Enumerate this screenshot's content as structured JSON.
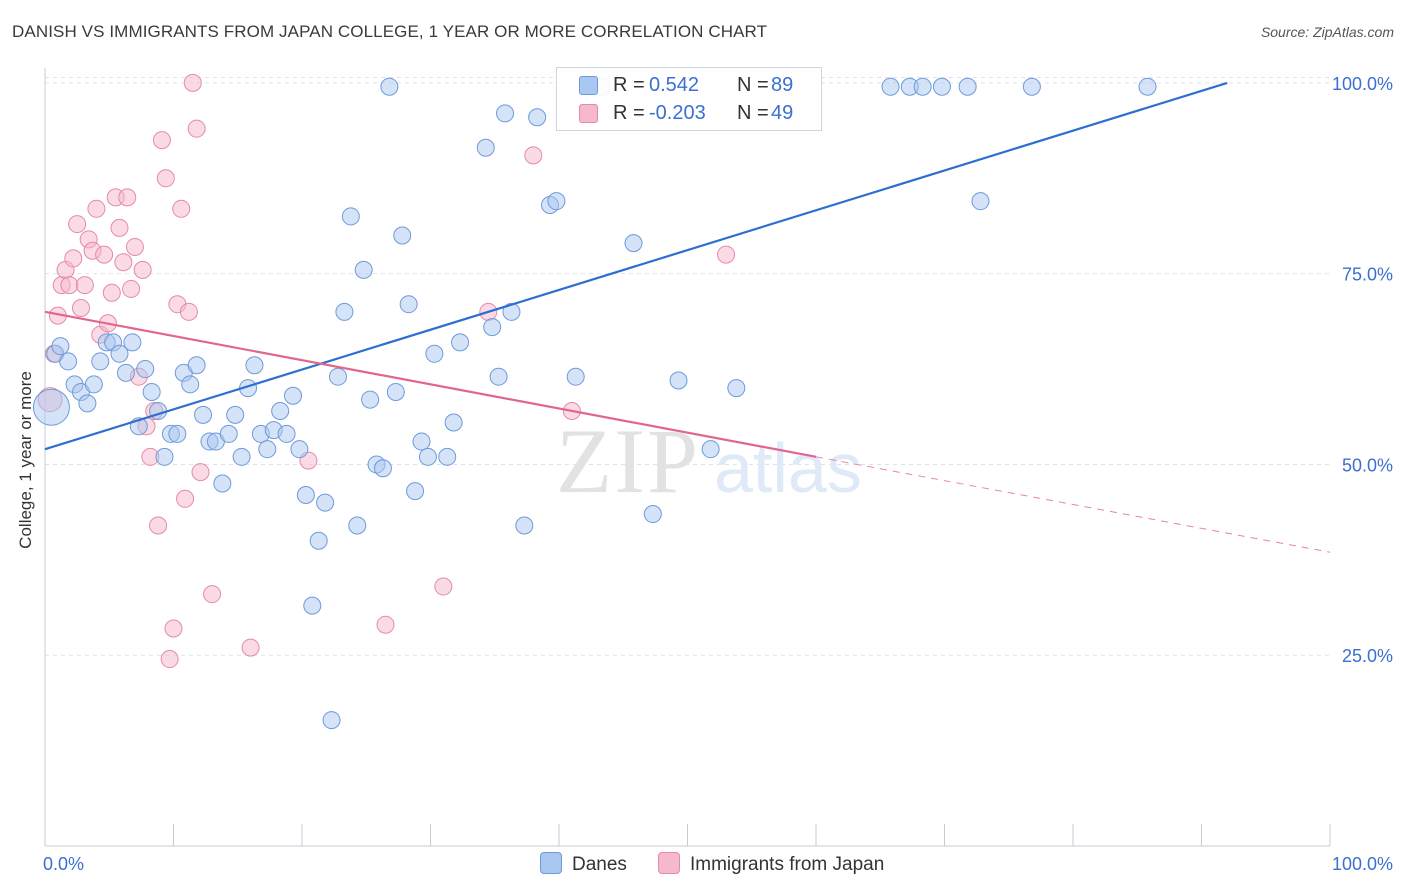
{
  "header": {
    "title": "DANISH VS IMMIGRANTS FROM JAPAN COLLEGE, 1 YEAR OR MORE CORRELATION CHART",
    "source": "Source: ZipAtlas.com"
  },
  "watermark": {
    "zip": "ZIP",
    "atlas": "atlas"
  },
  "legend": {
    "danes": {
      "r_label": "R =",
      "r_value": "0.542",
      "n_label": "N =",
      "n_value": "89"
    },
    "japan": {
      "r_label": "R =",
      "r_value": "-0.203",
      "n_label": "N =",
      "n_value": "49"
    }
  },
  "colors": {
    "danes_fill": "#a9c7f0",
    "danes_stroke": "#6f9ad8",
    "danes_line": "#2d6fd0",
    "japan_fill": "#f6b8cb",
    "japan_stroke": "#e68aa8",
    "japan_line": "#e06690",
    "axis_text": "#3b6fd0",
    "grid": "#dde2ea"
  },
  "chart_data": {
    "type": "scatter",
    "title": "DANISH VS IMMIGRANTS FROM JAPAN COLLEGE, 1 YEAR OR MORE CORRELATION CHART",
    "xlabel": "",
    "ylabel": "College, 1 year or more",
    "xlim": [
      0,
      100
    ],
    "ylim": [
      0,
      103
    ],
    "x_tick_labels": [
      "0.0%",
      "100.0%"
    ],
    "y_tick_values": [
      25,
      50,
      75,
      100
    ],
    "y_tick_labels": [
      "25.0%",
      "50.0%",
      "75.0%",
      "100.0%"
    ],
    "grid": true,
    "legend_position": "top-center",
    "series": [
      {
        "name": "Danes",
        "points": [
          [
            0.5,
            57.5
          ],
          [
            0.8,
            64.5
          ],
          [
            1.2,
            65.5
          ],
          [
            1.8,
            63.5
          ],
          [
            2.3,
            60.5
          ],
          [
            2.8,
            59.5
          ],
          [
            3.3,
            58.0
          ],
          [
            3.8,
            60.5
          ],
          [
            4.3,
            63.5
          ],
          [
            4.8,
            66.0
          ],
          [
            5.3,
            66.0
          ],
          [
            5.8,
            64.5
          ],
          [
            6.3,
            62.0
          ],
          [
            6.8,
            66.0
          ],
          [
            7.3,
            55.0
          ],
          [
            7.8,
            62.5
          ],
          [
            8.3,
            59.5
          ],
          [
            8.8,
            57.0
          ],
          [
            9.3,
            51.0
          ],
          [
            9.8,
            54.0
          ],
          [
            10.3,
            54.0
          ],
          [
            10.8,
            62.0
          ],
          [
            11.3,
            60.5
          ],
          [
            11.8,
            63.0
          ],
          [
            12.3,
            56.5
          ],
          [
            12.8,
            53.0
          ],
          [
            13.3,
            53.0
          ],
          [
            13.8,
            47.5
          ],
          [
            14.3,
            54.0
          ],
          [
            14.8,
            56.5
          ],
          [
            15.3,
            51.0
          ],
          [
            15.8,
            60.0
          ],
          [
            16.3,
            63.0
          ],
          [
            16.8,
            54.0
          ],
          [
            17.3,
            52.0
          ],
          [
            17.8,
            54.5
          ],
          [
            18.3,
            57.0
          ],
          [
            18.8,
            54.0
          ],
          [
            19.3,
            59.0
          ],
          [
            19.8,
            52.0
          ],
          [
            20.3,
            46.0
          ],
          [
            20.8,
            31.5
          ],
          [
            21.3,
            40.0
          ],
          [
            21.8,
            45.0
          ],
          [
            22.3,
            16.5
          ],
          [
            22.8,
            61.5
          ],
          [
            23.3,
            70.0
          ],
          [
            23.8,
            82.5
          ],
          [
            24.3,
            42.0
          ],
          [
            24.8,
            75.5
          ],
          [
            25.3,
            58.5
          ],
          [
            25.8,
            50.0
          ],
          [
            26.3,
            49.5
          ],
          [
            26.8,
            99.5
          ],
          [
            27.3,
            59.5
          ],
          [
            27.8,
            80.0
          ],
          [
            28.3,
            71.0
          ],
          [
            28.8,
            46.5
          ],
          [
            29.3,
            53.0
          ],
          [
            29.8,
            51.0
          ],
          [
            30.3,
            64.5
          ],
          [
            31.3,
            51.0
          ],
          [
            31.8,
            55.5
          ],
          [
            32.3,
            66.0
          ],
          [
            34.3,
            91.5
          ],
          [
            34.8,
            68.0
          ],
          [
            35.3,
            61.5
          ],
          [
            35.8,
            96.0
          ],
          [
            36.3,
            70.0
          ],
          [
            37.3,
            42.0
          ],
          [
            38.3,
            95.5
          ],
          [
            39.3,
            84.0
          ],
          [
            39.8,
            84.5
          ],
          [
            41.3,
            61.5
          ],
          [
            42.3,
            99.5
          ],
          [
            43.3,
            99.5
          ],
          [
            45.8,
            79.0
          ],
          [
            47.3,
            43.5
          ],
          [
            49.3,
            61.0
          ],
          [
            51.8,
            52.0
          ],
          [
            53.8,
            60.0
          ],
          [
            65.8,
            99.5
          ],
          [
            67.3,
            99.5
          ],
          [
            68.3,
            99.5
          ],
          [
            69.8,
            99.5
          ],
          [
            71.8,
            99.5
          ],
          [
            72.8,
            84.5
          ],
          [
            76.8,
            99.5
          ],
          [
            85.8,
            99.5
          ]
        ]
      },
      {
        "name": "Immigrants from Japan",
        "points": [
          [
            0.4,
            58.5
          ],
          [
            0.7,
            64.5
          ],
          [
            1.0,
            69.5
          ],
          [
            1.3,
            73.5
          ],
          [
            1.6,
            75.5
          ],
          [
            1.9,
            73.5
          ],
          [
            2.2,
            77.0
          ],
          [
            2.5,
            81.5
          ],
          [
            2.8,
            70.5
          ],
          [
            3.1,
            73.5
          ],
          [
            3.4,
            79.5
          ],
          [
            3.7,
            78.0
          ],
          [
            4.0,
            83.5
          ],
          [
            4.3,
            67.0
          ],
          [
            4.6,
            77.5
          ],
          [
            4.9,
            68.5
          ],
          [
            5.2,
            72.5
          ],
          [
            5.5,
            85.0
          ],
          [
            5.8,
            81.0
          ],
          [
            6.1,
            76.5
          ],
          [
            6.4,
            85.0
          ],
          [
            6.7,
            73.0
          ],
          [
            7.0,
            78.5
          ],
          [
            7.3,
            61.5
          ],
          [
            7.6,
            75.5
          ],
          [
            7.9,
            55.0
          ],
          [
            8.2,
            51.0
          ],
          [
            8.5,
            57.0
          ],
          [
            8.8,
            42.0
          ],
          [
            9.1,
            92.5
          ],
          [
            9.4,
            87.5
          ],
          [
            9.7,
            24.5
          ],
          [
            10.0,
            28.5
          ],
          [
            10.3,
            71.0
          ],
          [
            10.6,
            83.5
          ],
          [
            10.9,
            45.5
          ],
          [
            11.2,
            70.0
          ],
          [
            11.5,
            100.0
          ],
          [
            11.8,
            94.0
          ],
          [
            12.1,
            49.0
          ],
          [
            13.0,
            33.0
          ],
          [
            16.0,
            26.0
          ],
          [
            20.5,
            50.5
          ],
          [
            26.5,
            29.0
          ],
          [
            31.0,
            34.0
          ],
          [
            34.5,
            70.0
          ],
          [
            38.0,
            90.5
          ],
          [
            41.0,
            57.0
          ],
          [
            53.0,
            77.5
          ]
        ]
      }
    ],
    "trendlines": [
      {
        "series": "Danes",
        "x": [
          0,
          92
        ],
        "y": [
          52.0,
          100.0
        ],
        "style": "solid"
      },
      {
        "series": "Immigrants from Japan",
        "x": [
          0,
          60
        ],
        "y": [
          70.0,
          51.0
        ],
        "style": "solid"
      },
      {
        "series": "Immigrants from Japan",
        "x": [
          60,
          100
        ],
        "y": [
          51.0,
          38.5
        ],
        "style": "dashed"
      }
    ]
  },
  "bottom_legend": {
    "danes": "Danes",
    "japan": "Immigrants from Japan"
  }
}
